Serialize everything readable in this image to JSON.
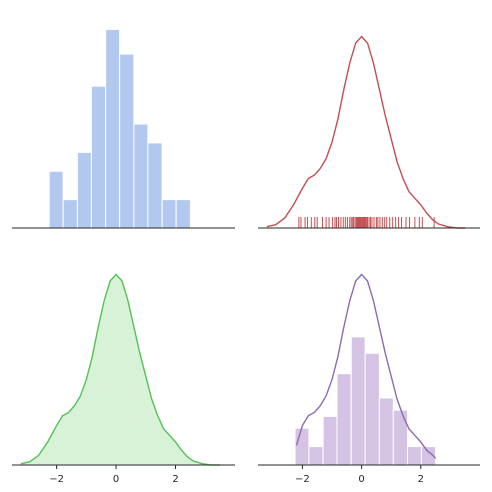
{
  "chart_data": [
    {
      "type": "histogram",
      "position": "top-left",
      "bins": [
        -2.25,
        -1.78,
        -1.3,
        -0.83,
        -0.35,
        0.12,
        0.6,
        1.07,
        1.55,
        2.02,
        2.5
      ],
      "counts": [
        3,
        1.5,
        4,
        7.5,
        10.5,
        9.2,
        5.5,
        4.5,
        1.5,
        1.5
      ],
      "color": "#b3c8ee",
      "edgecolor": "#ffffff",
      "xlim": [
        -3.5,
        4.0
      ],
      "ylim": [
        0,
        11
      ],
      "axes_visible": false,
      "baseline": true
    },
    {
      "type": "line",
      "subtype": "kde-with-rug",
      "position": "top-right",
      "color": "#c44e52",
      "x": [
        -3.2,
        -2.9,
        -2.6,
        -2.3,
        -2.0,
        -1.8,
        -1.6,
        -1.4,
        -1.2,
        -1.0,
        -0.8,
        -0.6,
        -0.4,
        -0.2,
        0.0,
        0.2,
        0.4,
        0.6,
        0.8,
        1.0,
        1.2,
        1.4,
        1.6,
        1.8,
        2.0,
        2.2,
        2.4,
        2.6,
        2.9,
        3.2,
        3.5
      ],
      "y": [
        0.004,
        0.01,
        0.03,
        0.07,
        0.12,
        0.15,
        0.16,
        0.18,
        0.21,
        0.26,
        0.33,
        0.42,
        0.5,
        0.56,
        0.58,
        0.56,
        0.5,
        0.42,
        0.34,
        0.27,
        0.2,
        0.15,
        0.11,
        0.09,
        0.07,
        0.045,
        0.025,
        0.012,
        0.004,
        0.0,
        0.0
      ],
      "rug": [
        -2.12,
        -2.05,
        -1.91,
        -1.83,
        -1.7,
        -1.58,
        -1.5,
        -1.32,
        -1.2,
        -1.1,
        -0.98,
        -0.9,
        -0.85,
        -0.78,
        -0.7,
        -0.62,
        -0.55,
        -0.48,
        -0.4,
        -0.35,
        -0.3,
        -0.27,
        -0.22,
        -0.18,
        -0.15,
        -0.12,
        -0.1,
        -0.07,
        -0.05,
        -0.03,
        0.0,
        0.02,
        0.05,
        0.08,
        0.1,
        0.13,
        0.16,
        0.2,
        0.25,
        0.3,
        0.35,
        0.42,
        0.5,
        0.55,
        0.62,
        0.7,
        0.78,
        0.85,
        0.95,
        1.05,
        1.15,
        1.25,
        1.35,
        1.5,
        1.62,
        1.8,
        1.95,
        2.05,
        2.45
      ],
      "xlim": [
        -3.5,
        4.0
      ],
      "ylim": [
        0,
        0.63
      ],
      "axes_visible": false,
      "baseline": true
    },
    {
      "type": "area",
      "subtype": "kde-shaded",
      "position": "bottom-left",
      "color": "#55c155",
      "fill": "#d8f2d8",
      "x": [
        -3.2,
        -2.9,
        -2.6,
        -2.3,
        -2.0,
        -1.8,
        -1.6,
        -1.4,
        -1.2,
        -1.0,
        -0.8,
        -0.6,
        -0.4,
        -0.2,
        0.0,
        0.2,
        0.4,
        0.6,
        0.8,
        1.0,
        1.2,
        1.4,
        1.6,
        1.8,
        2.0,
        2.2,
        2.4,
        2.6,
        2.9,
        3.2,
        3.5
      ],
      "y": [
        0.004,
        0.01,
        0.03,
        0.07,
        0.12,
        0.15,
        0.16,
        0.18,
        0.21,
        0.26,
        0.33,
        0.42,
        0.5,
        0.56,
        0.58,
        0.56,
        0.5,
        0.42,
        0.34,
        0.27,
        0.2,
        0.15,
        0.11,
        0.09,
        0.07,
        0.045,
        0.025,
        0.012,
        0.004,
        0.0,
        0.0
      ],
      "xlim": [
        -3.5,
        4.0
      ],
      "ylim": [
        0,
        0.63
      ],
      "xticks": [
        -2,
        0,
        2
      ],
      "xtick_labels": [
        "−2",
        "0",
        "2"
      ],
      "baseline": true
    },
    {
      "type": "histogram",
      "subtype": "histogram-with-kde",
      "position": "bottom-right",
      "bins": [
        -2.25,
        -1.78,
        -1.3,
        -0.83,
        -0.35,
        0.12,
        0.6,
        1.07,
        1.55,
        2.02,
        2.5
      ],
      "counts": [
        0.112,
        0.056,
        0.148,
        0.278,
        0.39,
        0.34,
        0.204,
        0.167,
        0.056,
        0.056
      ],
      "hist_color": "#d5c3e3",
      "edgecolor": "#ffffff",
      "kde_color": "#8c6bb1",
      "kde_x": [
        -2.2,
        -2.0,
        -1.8,
        -1.6,
        -1.4,
        -1.2,
        -1.0,
        -0.8,
        -0.6,
        -0.4,
        -0.2,
        0.0,
        0.2,
        0.4,
        0.6,
        0.8,
        1.0,
        1.2,
        1.4,
        1.6,
        1.8,
        2.0,
        2.2,
        2.4,
        2.5
      ],
      "kde_y": [
        0.06,
        0.12,
        0.15,
        0.16,
        0.18,
        0.21,
        0.26,
        0.33,
        0.42,
        0.5,
        0.56,
        0.58,
        0.56,
        0.5,
        0.42,
        0.34,
        0.27,
        0.2,
        0.15,
        0.11,
        0.09,
        0.07,
        0.045,
        0.03,
        0.02
      ],
      "xlim": [
        -3.5,
        4.0
      ],
      "ylim": [
        0,
        0.63
      ],
      "xticks": [
        -2,
        0,
        2
      ],
      "xtick_labels": [
        "−2",
        "0",
        "2"
      ],
      "baseline": true
    }
  ]
}
